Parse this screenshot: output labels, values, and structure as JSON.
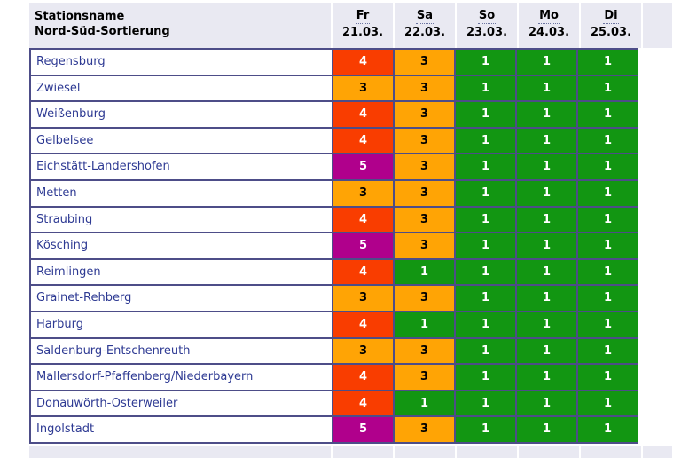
{
  "chart_data": {
    "type": "table",
    "station_header_line1": "Stationsname",
    "station_header_line2": "Nord-Süd-Sortierung",
    "day_headers": [
      {
        "abbr": "Fr",
        "date": "21.03."
      },
      {
        "abbr": "Sa",
        "date": "22.03."
      },
      {
        "abbr": "So",
        "date": "23.03."
      },
      {
        "abbr": "Mo",
        "date": "24.03."
      },
      {
        "abbr": "Di",
        "date": "25.03."
      }
    ],
    "rows": [
      {
        "station": "Regensburg",
        "values": [
          4,
          3,
          1,
          1,
          1
        ]
      },
      {
        "station": "Zwiesel",
        "values": [
          3,
          3,
          1,
          1,
          1
        ]
      },
      {
        "station": "Weißenburg",
        "values": [
          4,
          3,
          1,
          1,
          1
        ]
      },
      {
        "station": "Gelbelsee",
        "values": [
          4,
          3,
          1,
          1,
          1
        ]
      },
      {
        "station": "Eichstätt-Landershofen",
        "values": [
          5,
          3,
          1,
          1,
          1
        ]
      },
      {
        "station": "Metten",
        "values": [
          3,
          3,
          1,
          1,
          1
        ]
      },
      {
        "station": "Straubing",
        "values": [
          4,
          3,
          1,
          1,
          1
        ]
      },
      {
        "station": "Kösching",
        "values": [
          5,
          3,
          1,
          1,
          1
        ]
      },
      {
        "station": "Reimlingen",
        "values": [
          4,
          1,
          1,
          1,
          1
        ]
      },
      {
        "station": "Grainet-Rehberg",
        "values": [
          3,
          3,
          1,
          1,
          1
        ]
      },
      {
        "station": "Harburg",
        "values": [
          4,
          1,
          1,
          1,
          1
        ]
      },
      {
        "station": "Saldenburg-Entschenreuth",
        "values": [
          3,
          3,
          1,
          1,
          1
        ]
      },
      {
        "station": "Mallersdorf-Pfaffenberg/Niederbayern",
        "values": [
          4,
          3,
          1,
          1,
          1
        ]
      },
      {
        "station": "Donauwörth-Osterweiler",
        "values": [
          4,
          1,
          1,
          1,
          1
        ]
      },
      {
        "station": "Ingolstadt",
        "values": [
          5,
          3,
          1,
          1,
          1
        ]
      }
    ],
    "level_colors": {
      "1": {
        "bg": "#129612",
        "text": "#ffffff"
      },
      "3": {
        "bg": "#ffa405",
        "text": "#000000"
      },
      "4": {
        "bg": "#f93d00",
        "text": "#ffffff"
      },
      "5": {
        "bg": "#b0008c",
        "text": "#ffffff"
      }
    }
  },
  "colors": {
    "header_bg": "#e9e9f2",
    "grid_border": "#4d4d88",
    "station_text": "#2e3a93"
  }
}
